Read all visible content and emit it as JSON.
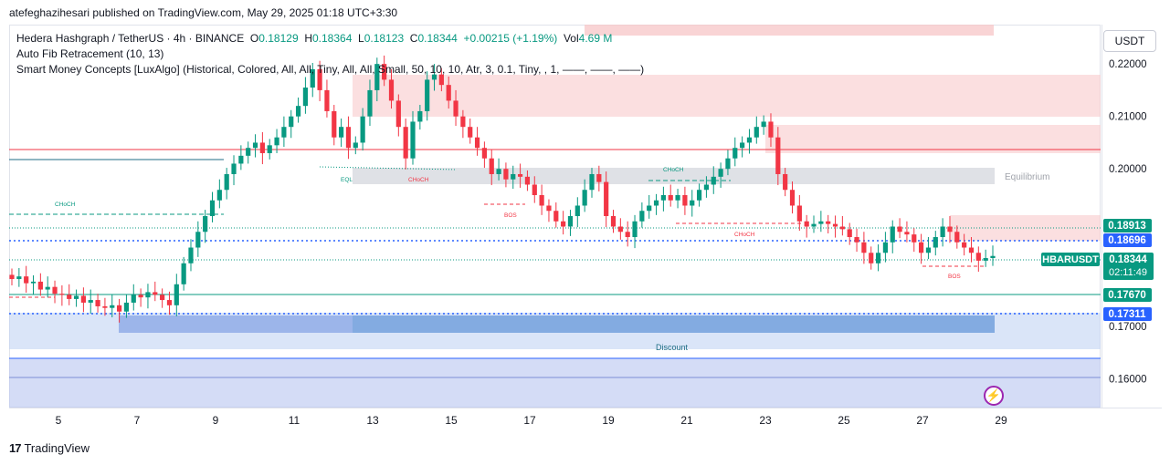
{
  "header": {
    "publish_line": "atefeghazihesari published on TradingView.com, May 29, 2025 01:18 UTC+3:30"
  },
  "legend": {
    "symbol": "Hedera Hashgraph / TetherUS · 4h · BINANCE",
    "o_label": "O",
    "o_value": "0.18129",
    "h_label": "H",
    "h_value": "0.18364",
    "l_label": "L",
    "l_value": "0.18123",
    "c_label": "C",
    "c_value": "0.18344",
    "change": "+0.00215 (+1.19%)",
    "vol_label": "Vol",
    "vol_value": "4.69 M",
    "indicator_1": "Auto Fib Retracement (10, 13)",
    "indicator_2": "Smart Money Concepts [LuxAlgo] (Historical, Colored, All, All, Tiny, All, All, Small, 50, 10, 10, Atr, 3, 0.1, Tiny, , 1, ——, ——, ——)"
  },
  "price_scale": {
    "currency": "USDT",
    "ticks": [
      "0.22000",
      "0.21000",
      "0.20000",
      "0.17000",
      "0.16000"
    ],
    "badges": [
      {
        "value": "0.18913",
        "color": "#089981"
      },
      {
        "value": "0.18696",
        "color": "#2962ff"
      },
      {
        "value": "0.17670",
        "color": "#089981"
      },
      {
        "value": "0.17311",
        "color": "#2962ff"
      }
    ],
    "last_price": {
      "symbol": "HBARUSDT",
      "value": "0.18344",
      "countdown": "02:11:49",
      "color": "#089981"
    }
  },
  "time_scale": {
    "ticks": [
      "5",
      "7",
      "9",
      "11",
      "13",
      "15",
      "17",
      "19",
      "21",
      "23",
      "25",
      "27",
      "29"
    ]
  },
  "footer": {
    "brand": "TradingView"
  },
  "annotations": {
    "equilibrium": "Equilibrium",
    "discount": "Discount",
    "eql": "EQL",
    "choch": "CHoCH",
    "bos": "BOS"
  },
  "chart_data": {
    "type": "candlestick",
    "symbol": "HBARUSDT",
    "timeframe": "4h",
    "ylim": [
      0.1545,
      0.2275
    ],
    "x_ticks": [
      "5",
      "7",
      "9",
      "11",
      "13",
      "15",
      "17",
      "19",
      "21",
      "23",
      "25",
      "27",
      "29"
    ],
    "last_close": 0.18344,
    "candles_close": [
      0.179,
      0.1795,
      0.1782,
      0.1785,
      0.177,
      0.1775,
      0.1762,
      0.176,
      0.1752,
      0.1758,
      0.1745,
      0.175,
      0.1738,
      0.1735,
      0.174,
      0.1728,
      0.1745,
      0.176,
      0.1755,
      0.1765,
      0.176,
      0.175,
      0.174,
      0.178,
      0.182,
      0.185,
      0.188,
      0.191,
      0.194,
      0.196,
      0.199,
      0.201,
      0.2025,
      0.204,
      0.205,
      0.203,
      0.2045,
      0.206,
      0.208,
      0.21,
      0.212,
      0.2155,
      0.219,
      0.215,
      0.211,
      0.206,
      0.208,
      0.204,
      0.205,
      0.21,
      0.215,
      0.22,
      0.217,
      0.213,
      0.208,
      0.202,
      0.209,
      0.211,
      0.217,
      0.218,
      0.216,
      0.213,
      0.21,
      0.208,
      0.206,
      0.204,
      0.202,
      0.199,
      0.2,
      0.198,
      0.199,
      0.1985,
      0.197,
      0.195,
      0.193,
      0.192,
      0.19,
      0.189,
      0.191,
      0.193,
      0.196,
      0.199,
      0.1975,
      0.191,
      0.189,
      0.188,
      0.187,
      0.19,
      0.192,
      0.193,
      0.194,
      0.195,
      0.194,
      0.195,
      0.193,
      0.194,
      0.196,
      0.197,
      0.1985,
      0.2,
      0.202,
      0.204,
      0.205,
      0.206,
      0.208,
      0.209,
      0.206,
      0.199,
      0.196,
      0.193,
      0.19,
      0.189,
      0.1895,
      0.19,
      0.1895,
      0.189,
      0.1885,
      0.187,
      0.186,
      0.184,
      0.182,
      0.184,
      0.186,
      0.189,
      0.188,
      0.1875,
      0.186,
      0.184,
      0.185,
      0.187,
      0.189,
      0.188,
      0.186,
      0.185,
      0.184,
      0.1825,
      0.183,
      0.1834
    ]
  }
}
